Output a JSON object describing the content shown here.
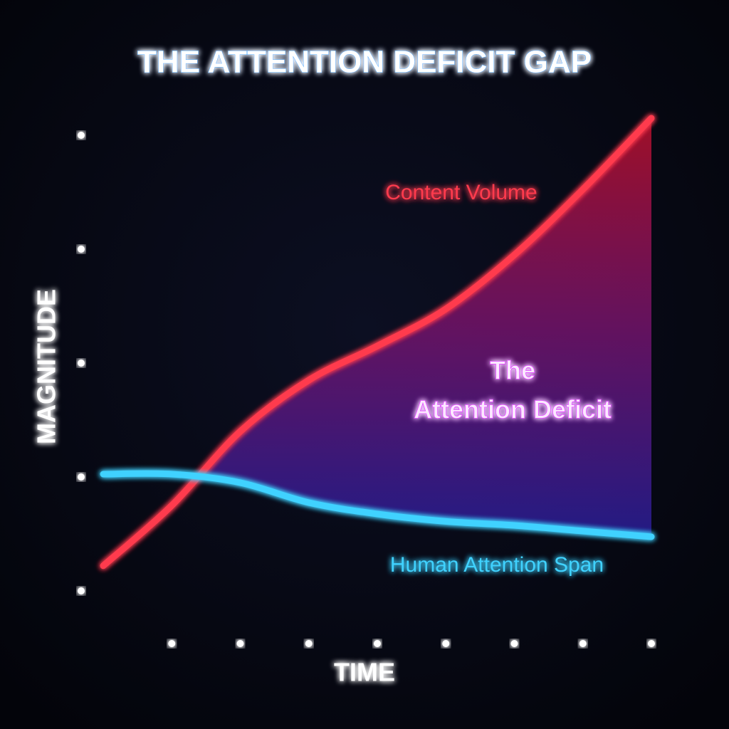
{
  "chart_data": {
    "type": "line",
    "title": "THE ATTENTION DEFICIT GAP",
    "x_label": "TIME",
    "y_label": "MAGNITUDE",
    "annotation": [
      "The",
      "Attention Deficit"
    ],
    "x": [
      0,
      1,
      2,
      3,
      4,
      5,
      6,
      7,
      8
    ],
    "series": [
      {
        "name": "Content Volume",
        "color": "#ff3b4e",
        "values": [
          0.94,
          2.0,
          3.3,
          4.2,
          4.8,
          5.45,
          6.4,
          7.55,
          8.8
        ]
      },
      {
        "name": "Human Attention Span",
        "color": "#3fd2ff",
        "values": [
          2.55,
          2.55,
          2.4,
          2.05,
          1.85,
          1.72,
          1.65,
          1.55,
          1.45
        ]
      }
    ],
    "xlim": [
      0,
      8
    ],
    "ylim": [
      0,
      8.8
    ],
    "xticks": [
      1,
      2,
      3,
      4,
      5,
      6,
      7,
      8
    ],
    "yticks": [
      0.5,
      1.5,
      2.5,
      3.5,
      4.5,
      5.5,
      6.5,
      7.5,
      8.5
    ]
  }
}
